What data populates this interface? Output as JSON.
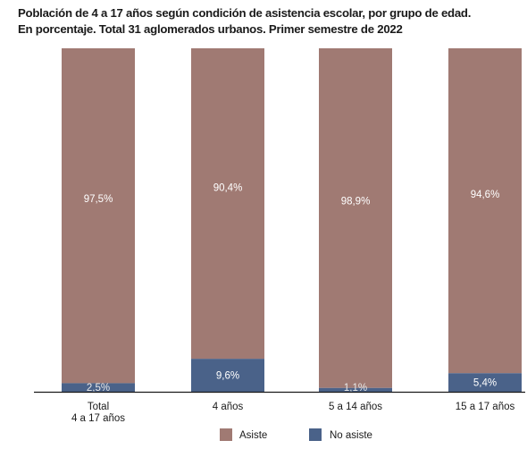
{
  "title": "Población de 4 a 17 años según condición de asistencia escolar, por grupo de edad.",
  "subtitle": "En porcentaje. Total 31 aglomerados urbanos. Primer semestre de 2022",
  "colors": {
    "asiste": "#a07a73",
    "no_asiste": "#4a6289",
    "axis": "#1a1a1a",
    "label_on_bar": "#ffffff",
    "label_dark": "#e8e8e8"
  },
  "chart_data": {
    "type": "bar",
    "stacked": true,
    "percent": true,
    "categories": [
      "Total\n4 a 17 años",
      "4 años",
      "5 a 14 años",
      "15 a 17 años"
    ],
    "series": [
      {
        "name": "No asiste",
        "values": [
          2.5,
          9.6,
          1.1,
          5.4
        ],
        "labels": [
          "2,5%",
          "9,6%",
          "1,1%",
          "5,4%"
        ]
      },
      {
        "name": "Asiste",
        "values": [
          97.5,
          90.4,
          98.9,
          94.6
        ],
        "labels": [
          "97,5%",
          "90,4%",
          "98,9%",
          "94,6%"
        ]
      }
    ],
    "ylim": [
      0,
      100
    ],
    "title": "Población de 4 a 17 años según condición de asistencia escolar, por grupo de edad.",
    "subtitle": "En porcentaje. Total 31 aglomerados urbanos. Primer semestre de 2022",
    "xlabel": "",
    "ylabel": "",
    "legend": [
      "Asiste",
      "No asiste"
    ],
    "legend_position": "bottom",
    "grid": false
  }
}
